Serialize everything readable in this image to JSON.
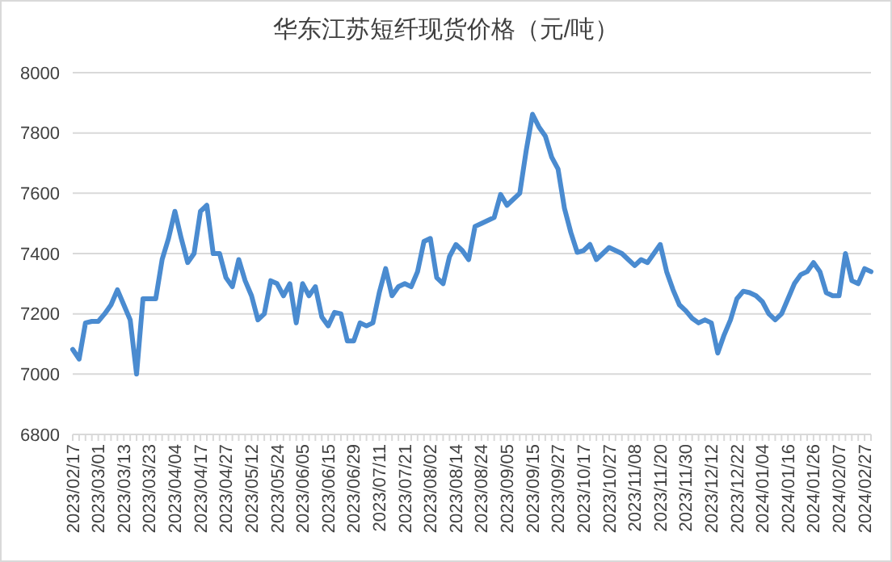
{
  "chart_data": {
    "type": "line",
    "title": "华东江苏短纤现货价格（元/吨）",
    "categories": [
      "2023/02/17",
      null,
      null,
      null,
      "2023/03/01",
      null,
      null,
      null,
      "2023/03/13",
      null,
      null,
      null,
      "2023/03/23",
      null,
      null,
      null,
      "2023/04/04",
      null,
      null,
      null,
      "2023/04/17",
      null,
      null,
      null,
      "2023/04/27",
      null,
      null,
      null,
      "2023/05/12",
      null,
      null,
      null,
      "2023/05/24",
      null,
      null,
      null,
      "2023/06/05",
      null,
      null,
      null,
      "2023/06/15",
      null,
      null,
      null,
      "2023/06/29",
      null,
      null,
      null,
      "2023/07/11",
      null,
      null,
      null,
      "2023/07/21",
      null,
      null,
      null,
      "2023/08/02",
      null,
      null,
      null,
      "2023/08/14",
      null,
      null,
      null,
      "2023/08/24",
      null,
      null,
      null,
      "2023/09/05",
      null,
      null,
      null,
      "2023/09/15",
      null,
      null,
      null,
      "2023/09/27",
      null,
      null,
      null,
      "2023/10/17",
      null,
      null,
      null,
      "2023/10/27",
      null,
      null,
      null,
      "2023/11/08",
      null,
      null,
      null,
      "2023/11/20",
      null,
      null,
      null,
      "2023/11/30",
      null,
      null,
      null,
      "2023/12/12",
      null,
      null,
      null,
      "2023/12/22",
      null,
      null,
      null,
      "2024/01/04",
      null,
      null,
      null,
      "2024/01/16",
      null,
      null,
      null,
      "2024/01/26",
      null,
      null,
      null,
      "2024/02/07",
      null,
      null,
      null,
      "2024/02/27",
      null
    ],
    "series": [
      {
        "color": "#4a8bd0",
        "values": [
          7082,
          7050,
          7170,
          7175,
          7175,
          7200,
          7230,
          7280,
          7230,
          7180,
          7000,
          7250,
          7250,
          7250,
          7380,
          7450,
          7540,
          7450,
          7370,
          7400,
          7540,
          7560,
          7400,
          7400,
          7320,
          7290,
          7380,
          7310,
          7260,
          7180,
          7200,
          7310,
          7300,
          7260,
          7300,
          7170,
          7300,
          7260,
          7290,
          7190,
          7160,
          7205,
          7200,
          7110,
          7110,
          7170,
          7160,
          7170,
          7270,
          7350,
          7260,
          7290,
          7300,
          7290,
          7340,
          7440,
          7450,
          7320,
          7300,
          7390,
          7430,
          7410,
          7380,
          7490,
          7500,
          7510,
          7520,
          7596,
          7560,
          7580,
          7600,
          7740,
          7862,
          7820,
          7790,
          7720,
          7680,
          7550,
          7470,
          7404,
          7410,
          7430,
          7380,
          7400,
          7420,
          7410,
          7400,
          7380,
          7360,
          7380,
          7370,
          7400,
          7430,
          7340,
          7280,
          7230,
          7210,
          7185,
          7170,
          7180,
          7170,
          7070,
          7130,
          7180,
          7250,
          7275,
          7270,
          7260,
          7240,
          7200,
          7180,
          7200,
          7250,
          7300,
          7330,
          7340,
          7370,
          7340,
          7270,
          7260,
          7260,
          7400,
          7310,
          7300,
          7350,
          7340
        ]
      }
    ],
    "ylim": [
      6800,
      8000
    ],
    "yticks": [
      6800,
      7000,
      7200,
      7400,
      7600,
      7800,
      8000
    ],
    "grid": "y",
    "legend": false,
    "marker": "none",
    "line_style": "solid"
  }
}
